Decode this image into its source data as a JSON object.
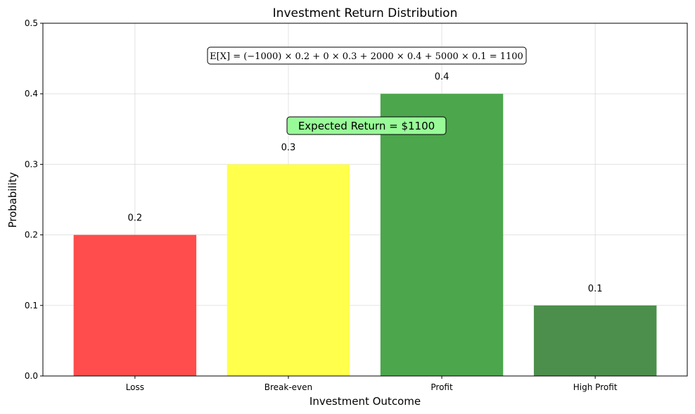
{
  "chart_data": {
    "type": "bar",
    "title": "Investment Return Distribution",
    "xlabel": "Investment Outcome",
    "ylabel": "Probability",
    "categories": [
      "Loss",
      "Break-even",
      "Profit",
      "High Profit"
    ],
    "values": [
      0.2,
      0.3,
      0.4,
      0.1
    ],
    "value_labels": [
      "0.2",
      "0.3",
      "0.4",
      "0.1"
    ],
    "colors": [
      "#ff4c4c",
      "#ffff4c",
      "#4ca64c",
      "#4c8f4c"
    ],
    "ylim": [
      0,
      0.5
    ],
    "yticks": [
      0.0,
      0.1,
      0.2,
      0.3,
      0.4,
      0.5
    ],
    "ytick_labels": [
      "0.0",
      "0.1",
      "0.2",
      "0.3",
      "0.4",
      "0.5"
    ],
    "grid": true,
    "annotations": {
      "formula": "E[X] = (−1000) × 0.2 + 0 × 0.3 + 2000 × 0.4 + 5000 × 0.1 = 1100",
      "expected_return": "Expected Return = $1100",
      "expected_box_color": "#98fb98",
      "formula_box_color": "#ffffff"
    }
  }
}
